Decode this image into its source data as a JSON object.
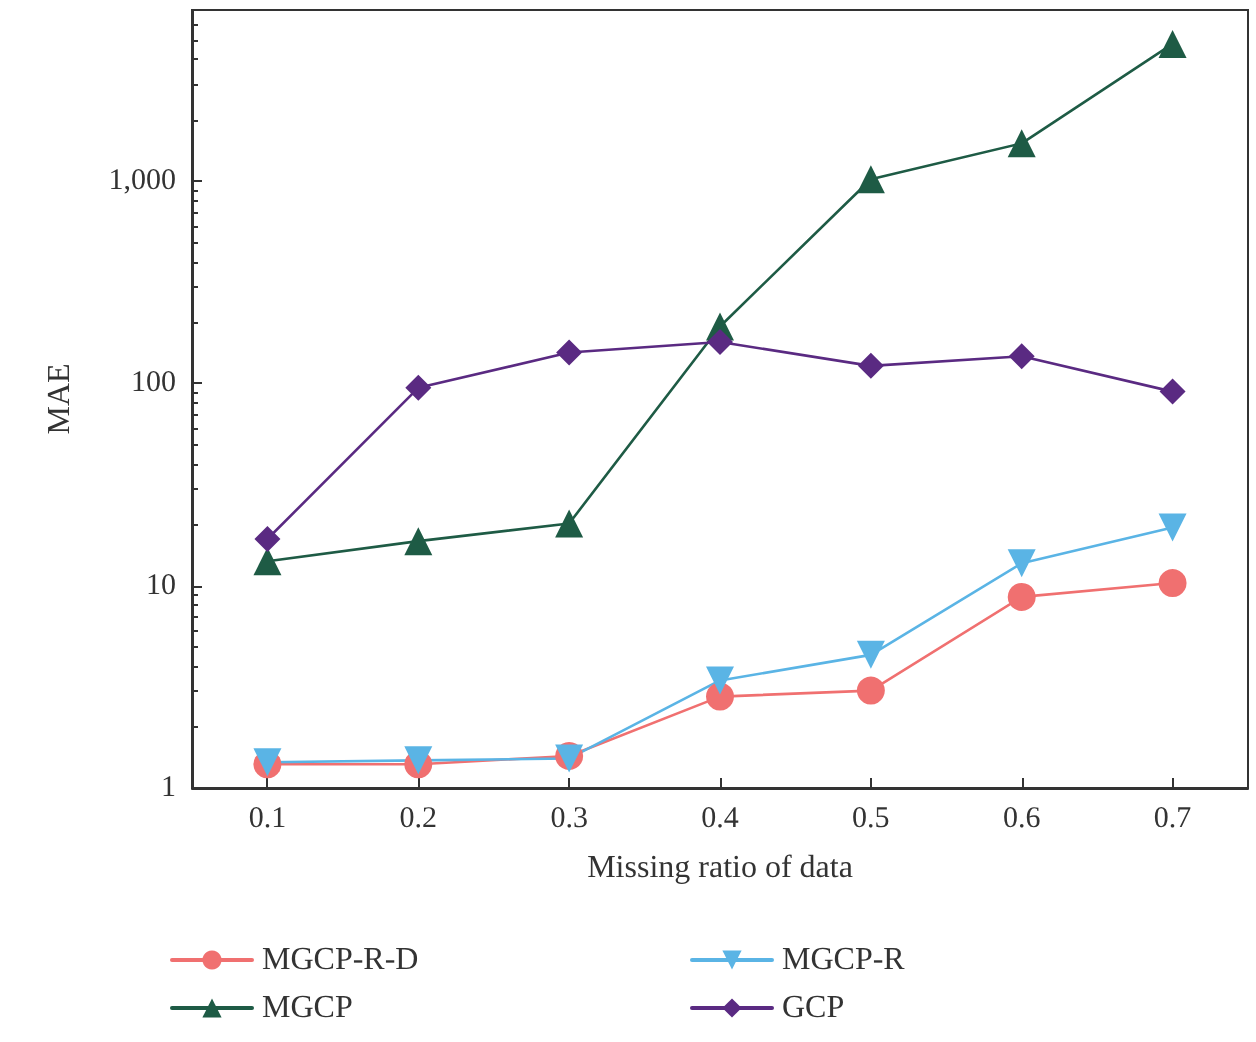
{
  "chart_data": {
    "type": "line",
    "xlabel": "Missing ratio of data",
    "ylabel": "MAE",
    "x": [
      0.1,
      0.2,
      0.3,
      0.4,
      0.5,
      0.6,
      0.7
    ],
    "series": [
      {
        "name": "MGCP-R-D",
        "color": "#f07070",
        "marker": "circle",
        "values": [
          1.31,
          1.31,
          1.44,
          2.83,
          3.03,
          8.8,
          10.3
        ]
      },
      {
        "name": "MGCP-R",
        "color": "#5ab4e5",
        "marker": "triangle-down",
        "values": [
          1.34,
          1.37,
          1.4,
          3.4,
          4.55,
          12.9,
          19.4
        ]
      },
      {
        "name": "MGCP",
        "color": "#1e5b45",
        "marker": "triangle",
        "values": [
          13.2,
          16.6,
          20.3,
          191,
          1020,
          1535,
          4760
        ]
      },
      {
        "name": "GCP",
        "color": "#5a2a82",
        "marker": "diamond",
        "values": [
          17,
          95,
          142,
          160,
          122,
          136,
          91
        ]
      }
    ],
    "log": "y",
    "xlim": [
      0.05,
      0.75
    ],
    "xticks": [
      0.1,
      0.2,
      0.3,
      0.4,
      0.5,
      0.6,
      0.7
    ],
    "ylim": [
      1,
      7000
    ],
    "yticks": [
      1,
      10,
      100,
      {
        "value": 1000,
        "label": "1,000"
      }
    ],
    "grid": false,
    "legend": "bottom",
    "line_style": "solid"
  }
}
